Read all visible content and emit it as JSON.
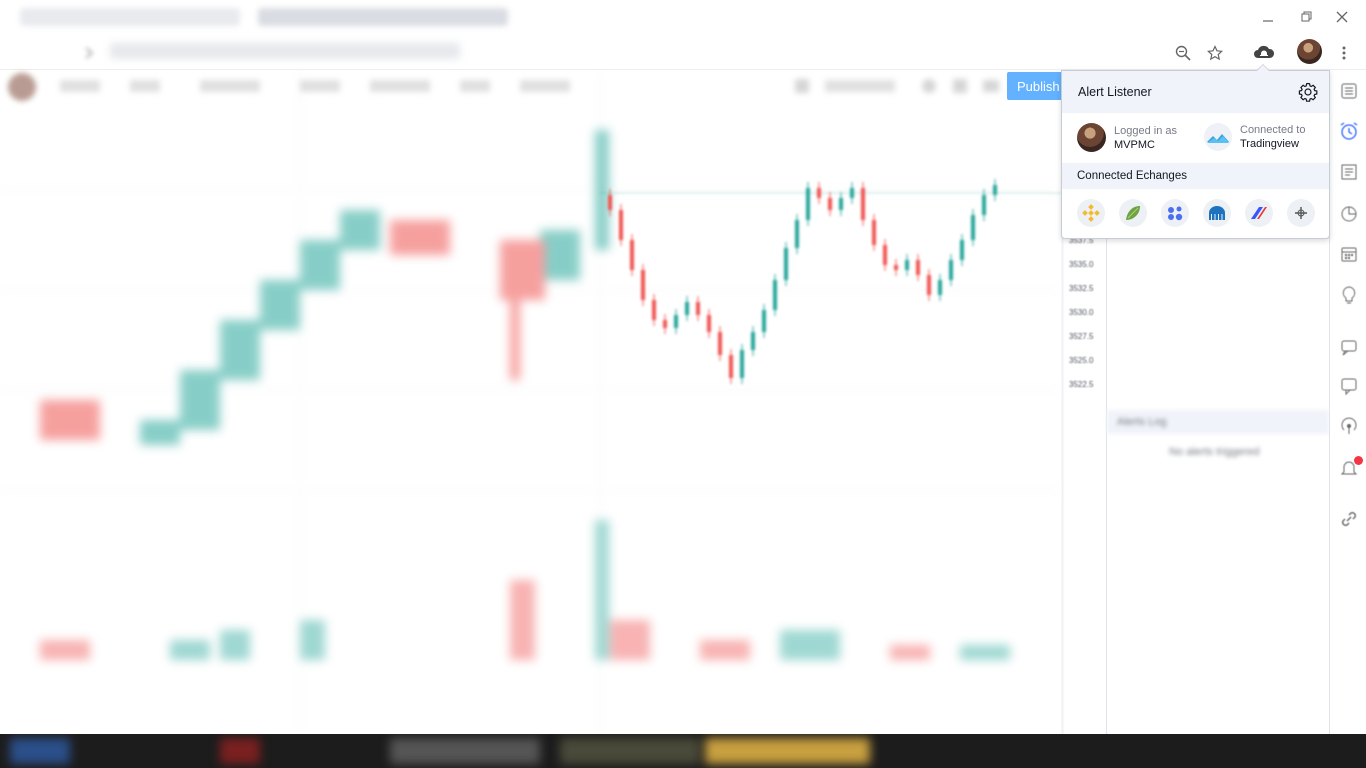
{
  "browser": {
    "window_buttons": [
      {
        "name": "minimize-icon",
        "glyph": "—"
      },
      {
        "name": "restore-icon",
        "glyph": "❐"
      },
      {
        "name": "close-icon",
        "glyph": "✕"
      }
    ],
    "address_icons": [
      "zoom-icon",
      "star-icon",
      "alert-listener-extension-icon",
      "profile-avatar",
      "more-menu-icon"
    ]
  },
  "chart": {
    "publish_label": "Publish",
    "price_ticks": [
      "3537.5",
      "3535.0",
      "3532.5",
      "3530.0",
      "3527.5",
      "3525.0",
      "3522.5"
    ],
    "up_color": "#26a69a",
    "down_color": "#ef5350"
  },
  "sidebar": {
    "alerts_log_title": "Alerts Log",
    "no_alerts_text": "No alerts triggered",
    "icons": [
      "watchlist-icon",
      "alarm-clock-icon",
      "data-window-icon",
      "hotlist-icon",
      "calendar-icon",
      "ideas-icon",
      "streams-icon",
      "chats-icon",
      "broadcast-icon",
      "notifications-icon",
      "link-icon"
    ]
  },
  "popup": {
    "title": "Alert Listener",
    "logged_in_label": "Logged in as",
    "username": "MVPMC",
    "connected_label": "Connected to",
    "connected_service": "Tradingview",
    "exchanges_title": "Connected Echanges",
    "exchanges": [
      {
        "name": "binance-exchange-icon",
        "color": "#f3ba2f"
      },
      {
        "name": "bitfinex-exchange-icon",
        "color": "#6ea341"
      },
      {
        "name": "bitmex-exchange-icon",
        "color": "#4a6ff0"
      },
      {
        "name": "kraken-exchange-icon",
        "color": "#1e73be"
      },
      {
        "name": "bitmart-exchange-icon",
        "color": "#3856ff"
      },
      {
        "name": "add-exchange-icon",
        "color": "#555555"
      }
    ]
  }
}
